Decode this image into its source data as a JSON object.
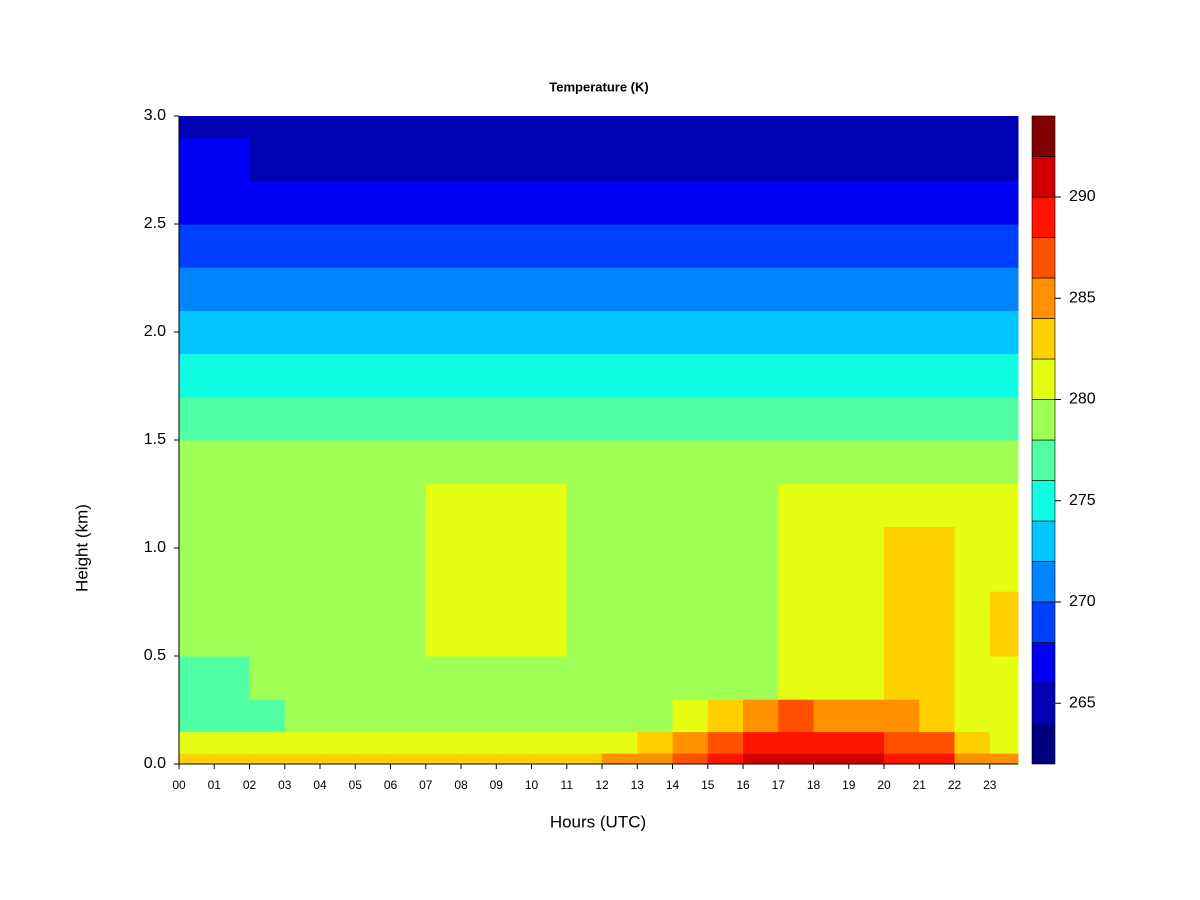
{
  "chart_data": {
    "type": "filled_contour",
    "title": "Temperature (K)",
    "x_label": "Hours (UTC)",
    "y_label": "Height (km)",
    "xlim": [
      0,
      23.8
    ],
    "ylim": [
      0,
      3
    ],
    "xticks": [
      {
        "value": 0,
        "label": "00"
      },
      {
        "value": 1,
        "label": "01"
      },
      {
        "value": 2,
        "label": "02"
      },
      {
        "value": 3,
        "label": "03"
      },
      {
        "value": 4,
        "label": "04"
      },
      {
        "value": 5,
        "label": "05"
      },
      {
        "value": 6,
        "label": "06"
      },
      {
        "value": 7,
        "label": "07"
      },
      {
        "value": 8,
        "label": "08"
      },
      {
        "value": 9,
        "label": "09"
      },
      10,
      11,
      12,
      13,
      14,
      15,
      16,
      17,
      18,
      19,
      20,
      21,
      22,
      23
    ],
    "yticks": [
      {
        "value": 0,
        "label": "0.0"
      },
      0.5,
      {
        "value": 1,
        "label": "1.0"
      },
      1.5,
      {
        "value": 2,
        "label": "2.0"
      },
      2.5,
      {
        "value": 3,
        "label": "3.0"
      }
    ],
    "x_bins": [
      0,
      1,
      2,
      3,
      4,
      5,
      6,
      7,
      8,
      9,
      10,
      11,
      12,
      13,
      14,
      15,
      16,
      17,
      18,
      19,
      20,
      21,
      22,
      23,
      23.8
    ],
    "y_bins": [
      0,
      0.05,
      0.15,
      0.3,
      0.5,
      0.8,
      1.1,
      1.3,
      1.5,
      1.7,
      1.9,
      2.1,
      2.3,
      2.5,
      2.7,
      2.9,
      3.0
    ],
    "z": [
      [
        283,
        283,
        283,
        283,
        283,
        283,
        283,
        283,
        283,
        283,
        283,
        283,
        284,
        284,
        287,
        289,
        291,
        291,
        290,
        291,
        289,
        289,
        285,
        284
      ],
      [
        281,
        281,
        281,
        281,
        281,
        281,
        281,
        281,
        281,
        281,
        281,
        281,
        281,
        283,
        285,
        287,
        289,
        289,
        288,
        289,
        287,
        287,
        283,
        281
      ],
      [
        277,
        277,
        277,
        279,
        279,
        279,
        279,
        279,
        279,
        279,
        279,
        279,
        279,
        279,
        281,
        283,
        285,
        286,
        285,
        285,
        284,
        283,
        281,
        281
      ],
      [
        277,
        277,
        279,
        279,
        279,
        279,
        279,
        279,
        279,
        279,
        279,
        279,
        279,
        279,
        279,
        279,
        279,
        281,
        281,
        281,
        283,
        283,
        281,
        281
      ],
      [
        279,
        279,
        279,
        279,
        279,
        279,
        279,
        281,
        281,
        281,
        281,
        279,
        279,
        279,
        279,
        279,
        279,
        281,
        281,
        281,
        283,
        283,
        281,
        283
      ],
      [
        279,
        279,
        279,
        279,
        279,
        279,
        279,
        281,
        281,
        281,
        281,
        279,
        279,
        279,
        279,
        279,
        279,
        281,
        281,
        281,
        283,
        283,
        281,
        281
      ],
      [
        279,
        279,
        279,
        279,
        279,
        279,
        279,
        281,
        281,
        281,
        281,
        279,
        279,
        279,
        279,
        279,
        279,
        281,
        281,
        281,
        281,
        281,
        281,
        281
      ],
      [
        279,
        279,
        279,
        279,
        279,
        279,
        279,
        279,
        279,
        279,
        279,
        279,
        279,
        279,
        279,
        279,
        279,
        279,
        279,
        279,
        279,
        279,
        279,
        279
      ],
      [
        277,
        277,
        277,
        277,
        277,
        277,
        277,
        277,
        277,
        277,
        277,
        277,
        277,
        277,
        277,
        277,
        277,
        277,
        277,
        277,
        277,
        277,
        277,
        277
      ],
      [
        275,
        275,
        275,
        275,
        275,
        275,
        275,
        275,
        275,
        275,
        275,
        275,
        275,
        275,
        275,
        275,
        275,
        275,
        275,
        275,
        275,
        275,
        275,
        275
      ],
      [
        273,
        273,
        273,
        273,
        273,
        273,
        273,
        273,
        273,
        273,
        273,
        273,
        273,
        273,
        273,
        273,
        273,
        273,
        273,
        273,
        273,
        273,
        273,
        273
      ],
      [
        271,
        271,
        271,
        271,
        271,
        271,
        271,
        271,
        271,
        271,
        271,
        271,
        271,
        271,
        271,
        271,
        271,
        271,
        271,
        271,
        271,
        271,
        271,
        271
      ],
      [
        269,
        269,
        269,
        269,
        269,
        269,
        269,
        269,
        269,
        269,
        269,
        269,
        269,
        269,
        269,
        269,
        269,
        269,
        269,
        269,
        269,
        269,
        269,
        269
      ],
      [
        267,
        267,
        267,
        267,
        267,
        267,
        267,
        267,
        267,
        267,
        267,
        267,
        267,
        267,
        267,
        267,
        267,
        267,
        267,
        267,
        267,
        267,
        267,
        267
      ],
      [
        267,
        267,
        265,
        265,
        265,
        265,
        265,
        265,
        265,
        265,
        265,
        265,
        265,
        265,
        265,
        265,
        265,
        265,
        265,
        265,
        265,
        265,
        265,
        265
      ],
      [
        265,
        265,
        265,
        265,
        265,
        265,
        265,
        265,
        265,
        265,
        265,
        265,
        265,
        265,
        265,
        265,
        265,
        265,
        265,
        265,
        265,
        265,
        265,
        265
      ]
    ],
    "levels": [
      262,
      264,
      266,
      268,
      270,
      272,
      274,
      276,
      278,
      280,
      282,
      284,
      286,
      288,
      290,
      292,
      294
    ],
    "colors": [
      "#00007F",
      "#0000B4",
      "#0000F4",
      "#0040FF",
      "#0084FF",
      "#00C4FF",
      "#10FFE4",
      "#50FFA4",
      "#A0FF54",
      "#E4FF14",
      "#FFD000",
      "#FF9000",
      "#FF5000",
      "#FF1400",
      "#D00000",
      "#800000"
    ],
    "colorbar_ticks": [
      265,
      270,
      275,
      280,
      285,
      290
    ]
  }
}
